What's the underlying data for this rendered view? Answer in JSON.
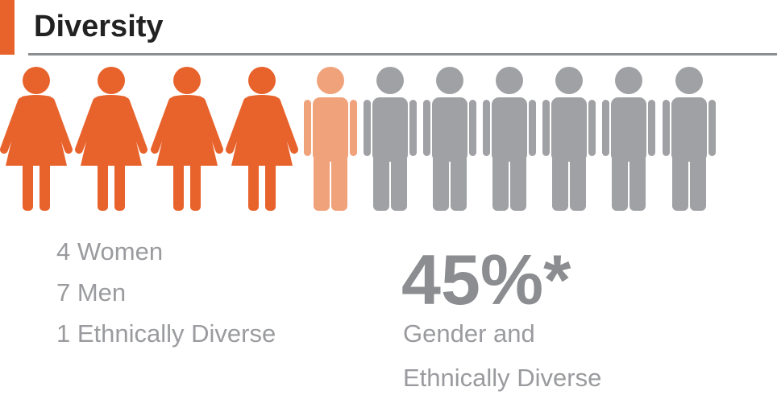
{
  "header": {
    "title": "Diversity"
  },
  "figures": [
    {
      "kind": "woman",
      "color": "#e8622c"
    },
    {
      "kind": "woman",
      "color": "#e8622c"
    },
    {
      "kind": "woman",
      "color": "#e8622c"
    },
    {
      "kind": "woman",
      "color": "#e8622c"
    },
    {
      "kind": "man",
      "color": "#f0a27b"
    },
    {
      "kind": "man",
      "color": "#a0a1a4"
    },
    {
      "kind": "man",
      "color": "#a0a1a4"
    },
    {
      "kind": "man",
      "color": "#a0a1a4"
    },
    {
      "kind": "man",
      "color": "#a0a1a4"
    },
    {
      "kind": "man",
      "color": "#a0a1a4"
    },
    {
      "kind": "man",
      "color": "#a0a1a4"
    }
  ],
  "breakdown": [
    "4 Women",
    "7 Men",
    "1 Ethnically Diverse"
  ],
  "stat": {
    "value": "45%*",
    "caption": [
      "Gender and",
      "Ethnically Diverse"
    ]
  }
}
